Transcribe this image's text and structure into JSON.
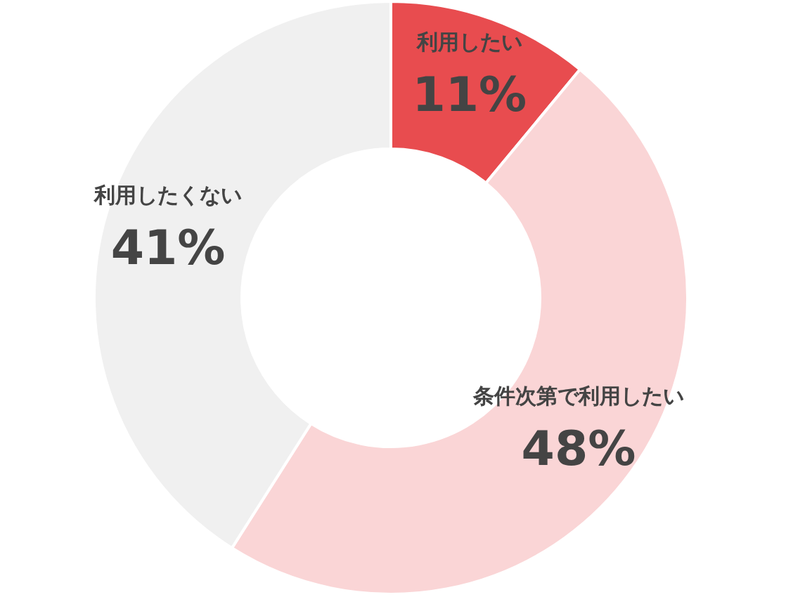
{
  "chart_data": {
    "type": "donut",
    "categories": [
      "利用したい",
      "条件次第で利用したい",
      "利用したくない"
    ],
    "values": [
      11,
      48,
      41
    ],
    "colors": [
      "#e84c4f",
      "#fad5d6",
      "#f0f0f0"
    ],
    "value_labels": [
      "11%",
      "48%",
      "41%"
    ]
  }
}
